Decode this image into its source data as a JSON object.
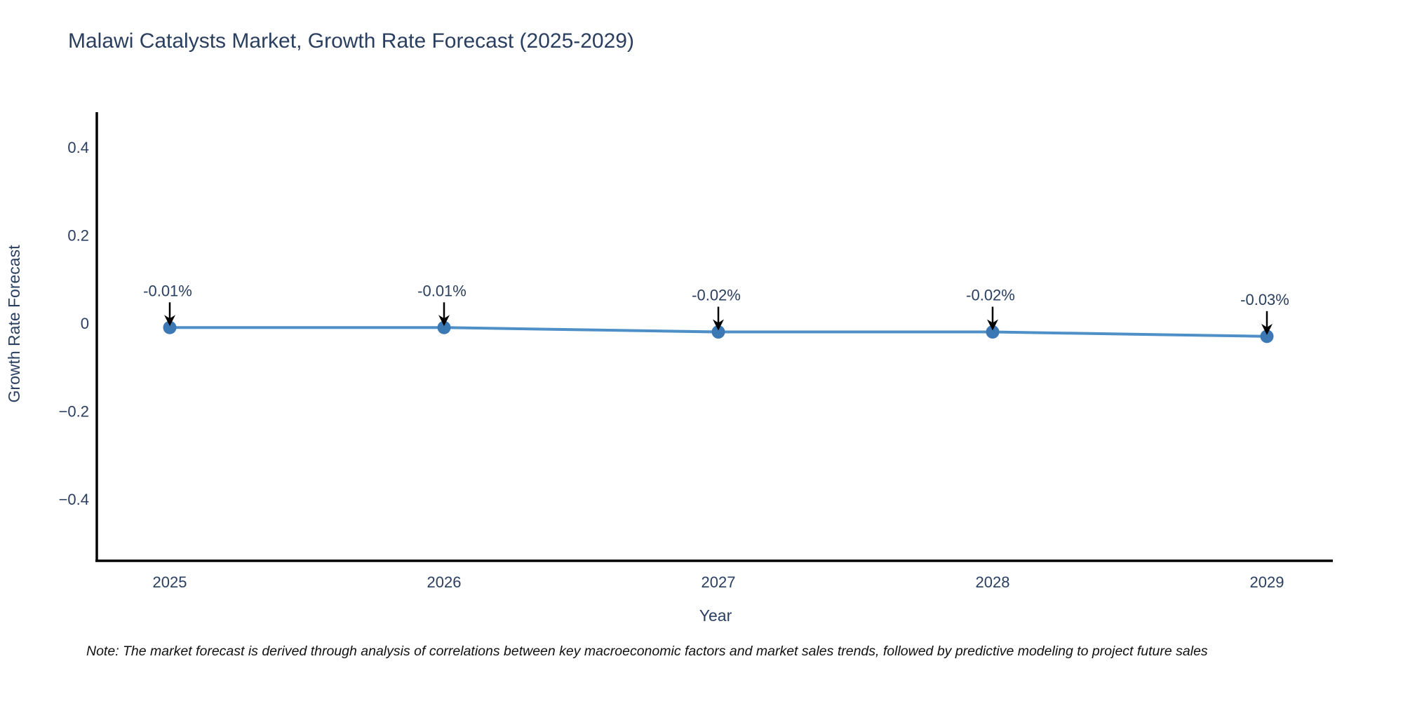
{
  "title": "Malawi Catalysts Market, Growth Rate Forecast (2025-2029)",
  "note": "Note: The market forecast is derived through analysis of correlations between key macroeconomic factors and market sales trends, followed by predictive modeling to project future sales",
  "chart_data": {
    "type": "line",
    "x": [
      2025,
      2026,
      2027,
      2028,
      2029
    ],
    "values": [
      -0.01,
      -0.01,
      -0.02,
      -0.02,
      -0.03
    ],
    "point_labels": [
      "-0.01%",
      "-0.01%",
      "-0.02%",
      "-0.02%",
      "-0.03%"
    ],
    "title": "Malawi Catalysts Market, Growth Rate Forecast (2025-2029)",
    "xlabel": "Year",
    "ylabel": "Growth Rate Forecast",
    "xtick_labels": [
      "2025",
      "2026",
      "2027",
      "2028",
      "2029"
    ],
    "yticks": [
      0.4,
      0.2,
      0,
      -0.2,
      -0.4
    ],
    "ytick_labels": [
      "0.4",
      "0.2",
      "0",
      "−0.2",
      "−0.4"
    ],
    "ylim": [
      -0.54,
      0.48
    ],
    "grid": false,
    "legend_position": "none",
    "colors": {
      "line": "#4e8fc7",
      "marker": "#3c78b4",
      "axis": "#000000",
      "text": "#2a3f5f",
      "annotation_text": "#1a1a1a",
      "arrow": "#000000"
    }
  }
}
